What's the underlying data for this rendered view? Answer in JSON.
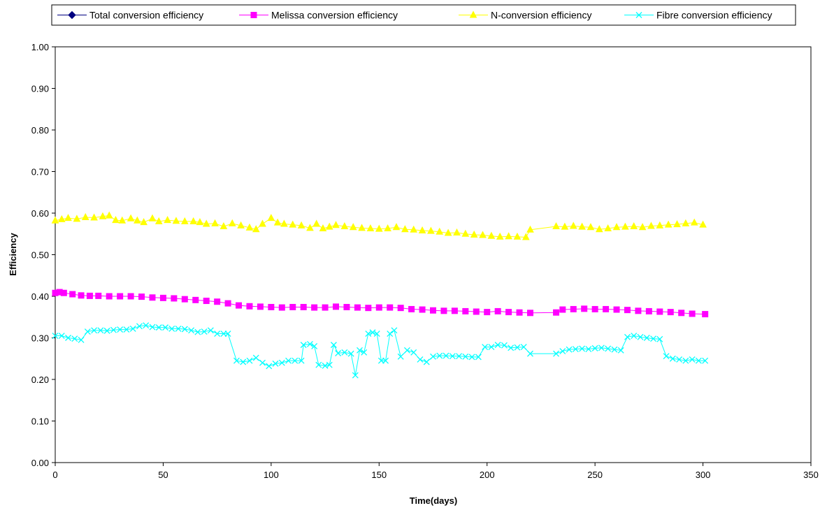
{
  "chart_data": {
    "type": "line",
    "title": "",
    "xlabel": "Time(days)",
    "ylabel": "Efficiency",
    "xlim": [
      0,
      350
    ],
    "ylim": [
      0,
      1
    ],
    "x_ticks": [
      0,
      50,
      100,
      150,
      200,
      250,
      300,
      350
    ],
    "y_ticks": [
      0,
      0.1,
      0.2,
      0.3,
      0.4,
      0.5,
      0.6,
      0.7,
      0.8,
      0.9,
      1.0
    ],
    "x_tick_labels": [
      "0",
      "50",
      "100",
      "150",
      "200",
      "250",
      "300",
      "350"
    ],
    "y_tick_labels": [
      "0.00",
      "0.10",
      "0.20",
      "0.30",
      "0.40",
      "0.50",
      "0.60",
      "0.70",
      "0.80",
      "0.90",
      "1.00"
    ],
    "grid": false,
    "legend_position": "top",
    "series": [
      {
        "name": "Total conversion efficiency",
        "color": "#000080",
        "marker": "diamond",
        "x": [],
        "y": []
      },
      {
        "name": "Melissa conversion efficiency",
        "color": "#ff00ff",
        "marker": "square",
        "x": [
          0,
          2,
          4,
          8,
          12,
          16,
          20,
          25,
          30,
          35,
          40,
          45,
          50,
          55,
          60,
          65,
          70,
          75,
          80,
          85,
          90,
          95,
          100,
          105,
          110,
          115,
          120,
          125,
          130,
          135,
          140,
          145,
          150,
          155,
          160,
          165,
          170,
          175,
          180,
          185,
          190,
          195,
          200,
          205,
          210,
          215,
          220,
          232,
          235,
          240,
          245,
          250,
          255,
          260,
          265,
          270,
          275,
          280,
          285,
          290,
          295,
          301
        ],
        "y": [
          0.408,
          0.41,
          0.408,
          0.405,
          0.402,
          0.401,
          0.401,
          0.4,
          0.4,
          0.4,
          0.399,
          0.397,
          0.396,
          0.395,
          0.393,
          0.391,
          0.389,
          0.387,
          0.383,
          0.378,
          0.376,
          0.375,
          0.374,
          0.373,
          0.374,
          0.374,
          0.373,
          0.373,
          0.375,
          0.374,
          0.373,
          0.372,
          0.373,
          0.373,
          0.372,
          0.369,
          0.368,
          0.366,
          0.365,
          0.365,
          0.364,
          0.363,
          0.362,
          0.364,
          0.362,
          0.361,
          0.36,
          0.361,
          0.368,
          0.369,
          0.37,
          0.369,
          0.369,
          0.368,
          0.367,
          0.365,
          0.364,
          0.363,
          0.362,
          0.36,
          0.358,
          0.357
        ]
      },
      {
        "name": "N-conversion efficiency",
        "color": "#ffff00",
        "marker": "triangle",
        "x": [
          0,
          3,
          6,
          10,
          14,
          18,
          22,
          25,
          28,
          31,
          35,
          38,
          41,
          45,
          48,
          52,
          56,
          60,
          64,
          67,
          70,
          74,
          78,
          82,
          86,
          90,
          93,
          96,
          100,
          103,
          106,
          110,
          114,
          118,
          121,
          124,
          127,
          130,
          134,
          138,
          142,
          146,
          150,
          154,
          158,
          162,
          166,
          170,
          174,
          178,
          182,
          186,
          190,
          194,
          198,
          202,
          206,
          210,
          214,
          218,
          220,
          232,
          236,
          240,
          244,
          248,
          252,
          256,
          260,
          264,
          268,
          272,
          276,
          280,
          284,
          288,
          292,
          296,
          300
        ],
        "y": [
          0.582,
          0.585,
          0.588,
          0.586,
          0.59,
          0.589,
          0.592,
          0.594,
          0.583,
          0.582,
          0.587,
          0.582,
          0.578,
          0.587,
          0.58,
          0.583,
          0.581,
          0.58,
          0.58,
          0.578,
          0.574,
          0.575,
          0.568,
          0.575,
          0.57,
          0.565,
          0.561,
          0.574,
          0.588,
          0.577,
          0.574,
          0.572,
          0.57,
          0.564,
          0.574,
          0.563,
          0.567,
          0.571,
          0.568,
          0.566,
          0.564,
          0.563,
          0.562,
          0.563,
          0.566,
          0.561,
          0.56,
          0.558,
          0.557,
          0.555,
          0.552,
          0.553,
          0.55,
          0.548,
          0.547,
          0.545,
          0.543,
          0.544,
          0.543,
          0.542,
          0.56,
          0.568,
          0.567,
          0.569,
          0.567,
          0.566,
          0.561,
          0.563,
          0.566,
          0.567,
          0.568,
          0.566,
          0.569,
          0.57,
          0.572,
          0.573,
          0.575,
          0.577,
          0.572
        ]
      },
      {
        "name": "Fibre conversion efficiency",
        "color": "#00ffff",
        "marker": "x",
        "x": [
          0,
          3,
          6,
          9,
          12,
          15,
          18,
          21,
          24,
          27,
          30,
          33,
          36,
          39,
          42,
          45,
          48,
          51,
          54,
          57,
          60,
          63,
          66,
          69,
          72,
          75,
          78,
          80,
          84,
          87,
          90,
          93,
          96,
          99,
          102,
          105,
          108,
          111,
          114,
          115,
          118,
          120,
          122,
          125,
          127,
          129,
          131,
          134,
          137,
          139,
          141,
          143,
          145,
          147,
          149,
          151,
          153,
          155,
          157,
          160,
          163,
          166,
          169,
          172,
          175,
          178,
          181,
          184,
          187,
          190,
          193,
          196,
          199,
          202,
          205,
          208,
          211,
          214,
          217,
          220,
          232,
          235,
          238,
          241,
          244,
          247,
          250,
          253,
          256,
          259,
          262,
          265,
          268,
          271,
          274,
          277,
          280,
          283,
          286,
          289,
          292,
          295,
          298,
          301
        ],
        "y": [
          0.305,
          0.305,
          0.3,
          0.298,
          0.295,
          0.315,
          0.318,
          0.318,
          0.317,
          0.319,
          0.32,
          0.32,
          0.322,
          0.328,
          0.33,
          0.326,
          0.325,
          0.325,
          0.322,
          0.322,
          0.321,
          0.318,
          0.314,
          0.315,
          0.318,
          0.31,
          0.31,
          0.31,
          0.245,
          0.242,
          0.245,
          0.252,
          0.24,
          0.232,
          0.238,
          0.24,
          0.245,
          0.245,
          0.245,
          0.283,
          0.285,
          0.28,
          0.235,
          0.233,
          0.235,
          0.283,
          0.263,
          0.265,
          0.262,
          0.21,
          0.27,
          0.265,
          0.31,
          0.313,
          0.31,
          0.245,
          0.245,
          0.31,
          0.318,
          0.255,
          0.27,
          0.265,
          0.248,
          0.242,
          0.255,
          0.257,
          0.257,
          0.256,
          0.256,
          0.255,
          0.254,
          0.254,
          0.278,
          0.278,
          0.283,
          0.282,
          0.276,
          0.277,
          0.278,
          0.262,
          0.262,
          0.268,
          0.272,
          0.273,
          0.274,
          0.273,
          0.275,
          0.276,
          0.274,
          0.272,
          0.27,
          0.302,
          0.305,
          0.302,
          0.3,
          0.298,
          0.297,
          0.256,
          0.25,
          0.248,
          0.245,
          0.248,
          0.245,
          0.245
        ]
      }
    ]
  }
}
